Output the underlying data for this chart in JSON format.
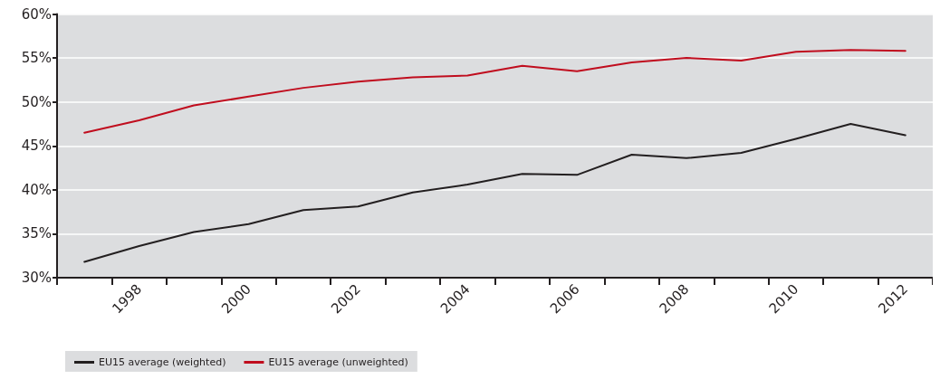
{
  "chart_data": {
    "type": "line",
    "categories": [
      null,
      "1998",
      null,
      "2000",
      null,
      "2002",
      null,
      "2004",
      null,
      "2006",
      null,
      "2008",
      null,
      "2010",
      null,
      "2012"
    ],
    "series": [
      {
        "name": "EU15 average (weighted)",
        "color": "#231f20",
        "values": [
          31.8,
          33.6,
          35.2,
          36.1,
          37.7,
          38.1,
          39.7,
          40.6,
          41.8,
          41.7,
          44.0,
          43.6,
          44.2,
          45.8,
          47.5,
          46.2
        ]
      },
      {
        "name": "EU15 average (unweighted)",
        "color": "#c00d1e",
        "values": [
          46.5,
          47.9,
          49.6,
          50.6,
          51.6,
          52.3,
          52.8,
          53.0,
          54.1,
          53.5,
          54.5,
          55.0,
          54.7,
          55.7,
          55.9,
          55.8
        ]
      }
    ],
    "ylim": [
      30,
      60
    ],
    "yticks": [
      {
        "value": 30,
        "label": "30%"
      },
      {
        "value": 35,
        "label": "35%"
      },
      {
        "value": 40,
        "label": "40%"
      },
      {
        "value": 45,
        "label": "45%"
      },
      {
        "value": 50,
        "label": "50%"
      },
      {
        "value": 55,
        "label": "55%"
      },
      {
        "value": 60,
        "label": "60%"
      }
    ],
    "grid": "y",
    "legend": "bottom left",
    "marker": "none",
    "line_style": "solid"
  }
}
